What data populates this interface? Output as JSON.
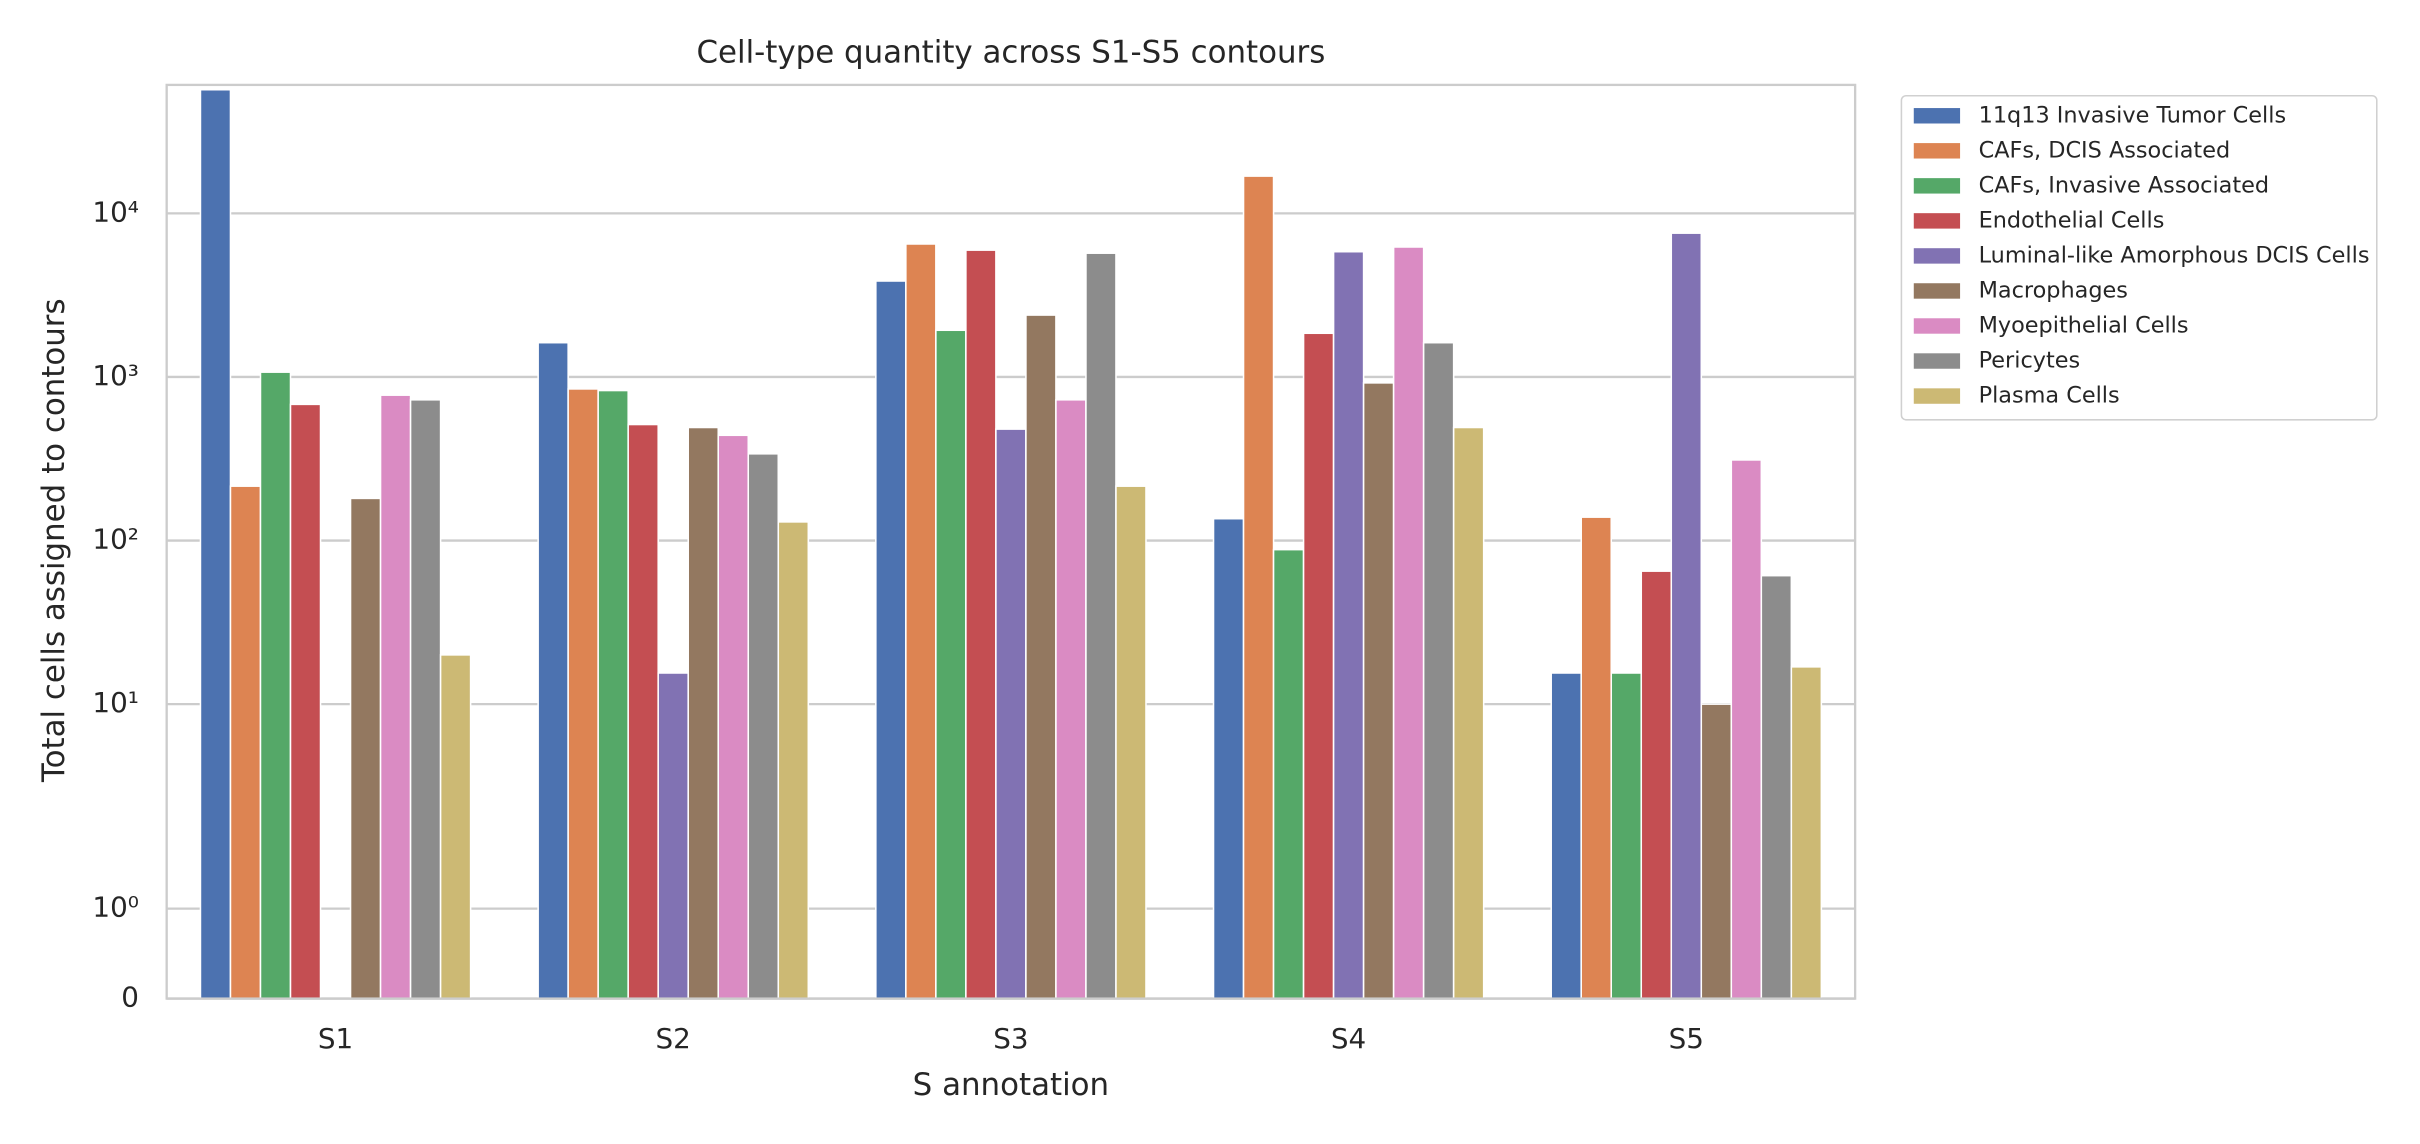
{
  "chart_data": {
    "type": "bar",
    "title": "Cell-type quantity across S1-S5 contours",
    "x_label": "S annotation",
    "y_label": "Total cells assigned to contours",
    "yscale": "symlog",
    "grid": true,
    "legend": "outside upper right",
    "categories": [
      "S1",
      "S2",
      "S3",
      "S4",
      "S5"
    ],
    "series": [
      {
        "name": "11q13 Invasive Tumor Cells",
        "color": "#4c72b0",
        "values": [
          57000,
          1620,
          3860,
          136,
          15.5
        ]
      },
      {
        "name": "CAFs, DCIS Associated",
        "color": "#dd8452",
        "values": [
          215,
          845,
          6500,
          16900,
          139
        ]
      },
      {
        "name": "CAFs, Invasive Associated",
        "color": "#55a868",
        "values": [
          1070,
          826,
          1930,
          88,
          15.5
        ]
      },
      {
        "name": "Endothelial Cells",
        "color": "#c44e52",
        "values": [
          680,
          512,
          5960,
          1850,
          65
        ]
      },
      {
        "name": "Luminal-like Amorphous DCIS Cells",
        "color": "#8172b3",
        "values": [
          0,
          15.5,
          480,
          5830,
          7570
        ]
      },
      {
        "name": "Macrophages",
        "color": "#937860",
        "values": [
          181,
          491,
          2390,
          920,
          10
        ]
      },
      {
        "name": "Myoepithelial Cells",
        "color": "#da8bc3",
        "values": [
          774,
          440,
          725,
          6230,
          311
        ]
      },
      {
        "name": "Pericytes",
        "color": "#8c8c8c",
        "values": [
          725,
          339,
          5710,
          1620,
          61
        ]
      },
      {
        "name": "Plasma Cells",
        "color": "#ccb974",
        "values": [
          20,
          130,
          215,
          491,
          16.9
        ]
      }
    ],
    "ylim": [
      0,
      61000
    ],
    "yticks": [
      0,
      {
        "value": 1,
        "label": "10⁰"
      },
      {
        "value": 10,
        "label": "10¹"
      },
      {
        "value": 100,
        "label": "10²"
      },
      {
        "value": 1000,
        "label": "10³"
      },
      {
        "value": 10000,
        "label": "10⁴"
      }
    ]
  }
}
